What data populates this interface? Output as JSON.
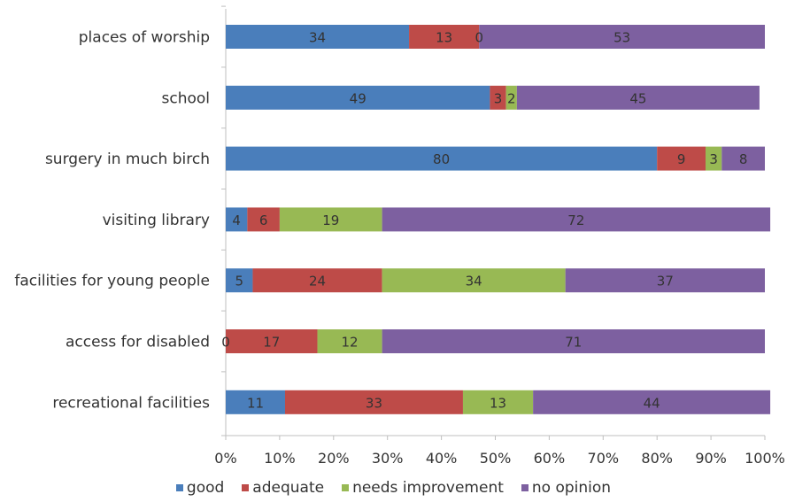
{
  "chart_data": {
    "type": "bar",
    "orientation": "horizontal",
    "stacked": "percent",
    "title": "",
    "xlabel": "",
    "ylabel": "",
    "xlim": [
      0,
      100
    ],
    "x_ticks": [
      "0%",
      "10%",
      "20%",
      "30%",
      "40%",
      "50%",
      "60%",
      "70%",
      "80%",
      "90%",
      "100%"
    ],
    "grid": false,
    "legend_position": "bottom",
    "categories": [
      "places of worship",
      "school",
      "surgery in much birch",
      "visiting library",
      "facilities for young people",
      "access for disabled",
      "recreational facilities"
    ],
    "series": [
      {
        "name": "good",
        "color": "#4a7ebb",
        "values": [
          34,
          49,
          80,
          4,
          5,
          0,
          11
        ]
      },
      {
        "name": "adequate",
        "color": "#be4b48",
        "values": [
          13,
          3,
          9,
          6,
          24,
          17,
          33
        ]
      },
      {
        "name": "needs improvement",
        "color": "#98b954",
        "values": [
          0,
          2,
          3,
          19,
          34,
          12,
          13
        ]
      },
      {
        "name": "no opinion",
        "color": "#7d60a0",
        "values": [
          53,
          45,
          8,
          72,
          37,
          71,
          44
        ]
      }
    ]
  }
}
